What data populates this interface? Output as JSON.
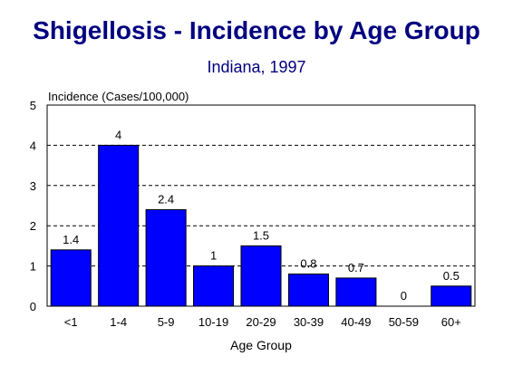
{
  "chart_data": {
    "type": "bar",
    "title": "Shigellosis - Incidence by Age Group",
    "subtitle": "Indiana, 1997",
    "ylabel": "Incidence (Cases/100,000)",
    "xlabel": "Age Group",
    "categories": [
      "<1",
      "1-4",
      "5-9",
      "10-19",
      "20-29",
      "30-39",
      "40-49",
      "50-59",
      "60+"
    ],
    "values": [
      1.4,
      4,
      2.4,
      1,
      1.5,
      0.8,
      0.7,
      0,
      0.5
    ],
    "value_labels": [
      "1.4",
      "4",
      "2.4",
      "1",
      "1.5",
      "0.8",
      "0.7",
      "0",
      "0.5"
    ],
    "ylim": [
      0,
      5
    ],
    "yticks": [
      0,
      1,
      2,
      3,
      4,
      5
    ],
    "grid": "dashed horizontal",
    "legend": "none",
    "colors": {
      "bar": "#0000ff",
      "title": "#000080",
      "grid": "#000000"
    }
  }
}
